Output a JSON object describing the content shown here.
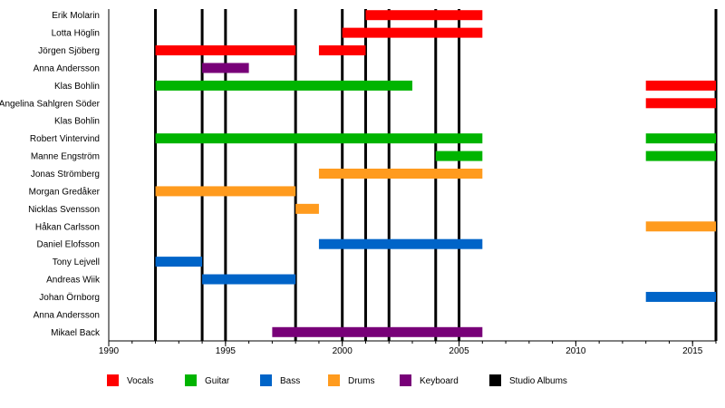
{
  "chart_data": {
    "type": "timeline",
    "xlim": [
      1990,
      2016
    ],
    "x_ticks": [
      1990,
      1995,
      2000,
      2005,
      2010,
      2015
    ],
    "members": [
      "Erik Molarin",
      "Lotta Höglin",
      "Jörgen Sjöberg",
      "Anna Andersson",
      "Klas Bohlin",
      "Angelina Sahlgren Söder",
      "Klas Bohlin",
      "Robert Vintervind",
      "Manne Engström",
      "Jonas Strömberg",
      "Morgan Gredåker",
      "Nicklas Svensson",
      "Håkan Carlsson",
      "Daniel Elofsson",
      "Tony Lejvell",
      "Andreas Wiik",
      "Johan Örnborg",
      "Anna Andersson",
      "Mikael Back"
    ],
    "roles": [
      {
        "key": "vocals",
        "name": "Vocals",
        "color": "#ff0000"
      },
      {
        "key": "guitar",
        "name": "Guitar",
        "color": "#00b400"
      },
      {
        "key": "bass",
        "name": "Bass",
        "color": "#0064c8"
      },
      {
        "key": "drums",
        "name": "Drums",
        "color": "#ff9b1e"
      },
      {
        "key": "keyboard",
        "name": "Keyboard",
        "color": "#780078"
      },
      {
        "key": "albums",
        "name": "Studio Albums",
        "color": "#000000"
      }
    ],
    "bars": [
      {
        "member": 0,
        "role": "vocals",
        "start": 2001,
        "end": 2006
      },
      {
        "member": 1,
        "role": "vocals",
        "start": 2000,
        "end": 2006
      },
      {
        "member": 2,
        "role": "vocals",
        "start": 1992,
        "end": 1998
      },
      {
        "member": 2,
        "role": "vocals",
        "start": 1999,
        "end": 2001
      },
      {
        "member": 3,
        "role": "keyboard",
        "start": 1994,
        "end": 1996
      },
      {
        "member": 4,
        "role": "guitar",
        "start": 1992,
        "end": 2003
      },
      {
        "member": 4,
        "role": "vocals",
        "start": 2013,
        "end": 2016
      },
      {
        "member": 5,
        "role": "vocals",
        "start": 2013,
        "end": 2016
      },
      {
        "member": 7,
        "role": "guitar",
        "start": 1992,
        "end": 2006
      },
      {
        "member": 7,
        "role": "guitar",
        "start": 2013,
        "end": 2016
      },
      {
        "member": 8,
        "role": "guitar",
        "start": 2004,
        "end": 2006
      },
      {
        "member": 8,
        "role": "guitar",
        "start": 2013,
        "end": 2016
      },
      {
        "member": 9,
        "role": "drums",
        "start": 1999,
        "end": 2006
      },
      {
        "member": 10,
        "role": "drums",
        "start": 1992,
        "end": 1998
      },
      {
        "member": 11,
        "role": "drums",
        "start": 1998,
        "end": 1999
      },
      {
        "member": 12,
        "role": "drums",
        "start": 2013,
        "end": 2016
      },
      {
        "member": 13,
        "role": "bass",
        "start": 1999,
        "end": 2006
      },
      {
        "member": 14,
        "role": "bass",
        "start": 1992,
        "end": 1994
      },
      {
        "member": 15,
        "role": "bass",
        "start": 1994,
        "end": 1998
      },
      {
        "member": 16,
        "role": "bass",
        "start": 2013,
        "end": 2016
      },
      {
        "member": 18,
        "role": "keyboard",
        "start": 1997,
        "end": 2006
      }
    ],
    "album_years": [
      1992,
      1994,
      1995,
      1998,
      2000,
      2001,
      2002,
      2004,
      2005,
      2016
    ]
  }
}
